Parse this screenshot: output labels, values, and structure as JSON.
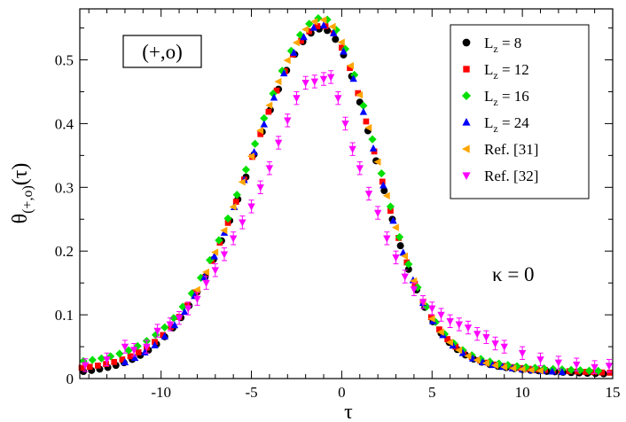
{
  "chart_data": {
    "type": "scatter",
    "title": "",
    "xlabel": "τ",
    "ylabel_main": "θ",
    "ylabel_sub": "(+,o)",
    "ylabel_tail": "(τ)",
    "xlim": [
      -14.5,
      15
    ],
    "ylim": [
      0,
      0.58
    ],
    "xticks": [
      -10,
      -5,
      0,
      5,
      10,
      15
    ],
    "yticks": [
      0,
      0.1,
      0.2,
      0.3,
      0.4,
      0.5
    ],
    "xtick_labels": [
      "-10",
      "-5",
      "0",
      "5",
      "10",
      "15"
    ],
    "ytick_labels": [
      "0",
      "0.1",
      "0.2",
      "0.3",
      "0.4",
      "0.5"
    ],
    "minor_xtick_step": 1,
    "minor_ytick_step": 0.05,
    "annotations": {
      "box_label": "(+,o)",
      "kappa_label": "κ = 0"
    },
    "legend_position": "top-right",
    "curve": {
      "peak_x": -1.1,
      "peak_y": 0.552,
      "width_left": 4.1,
      "width_right": 3.0,
      "tail_left": 4.2,
      "tail_right": 4.6
    },
    "series": [
      {
        "name": "Lz8",
        "label_main": "L",
        "label_sub": "z",
        "label_tail": " = 8",
        "marker": "circle",
        "color": "#000000",
        "x_start": -14.3,
        "x_end": 14.5,
        "step": 0.45,
        "y_scale": 0.994,
        "y_offset": 0.0,
        "left_boost": 0.0
      },
      {
        "name": "Lz12",
        "label_main": "L",
        "label_sub": "z",
        "label_tail": " = 12",
        "marker": "square",
        "color": "#ff0000",
        "x_start": -14.4,
        "x_end": 14.9,
        "step": 0.45,
        "y_scale": 1.0,
        "y_offset": 0.002,
        "left_boost": 0.004
      },
      {
        "name": "Lz16",
        "label_main": "L",
        "label_sub": "z",
        "label_tail": " = 16",
        "marker": "diamond",
        "color": "#00e000",
        "x_start": -14.3,
        "x_end": 14.6,
        "step": 0.5,
        "y_scale": 1.018,
        "y_offset": 0.004,
        "left_boost": 0.012
      },
      {
        "name": "Lz24",
        "label_main": "L",
        "label_sub": "z",
        "label_tail": " = 24",
        "marker": "triangle-up",
        "color": "#0000ff",
        "x_start": -12.0,
        "x_end": 12.5,
        "step": 0.55,
        "y_scale": 1.004,
        "y_offset": 0.0,
        "left_boost": 0.0
      },
      {
        "name": "Ref31",
        "label_main": "Ref. [31]",
        "label_sub": "",
        "label_tail": "",
        "marker": "triangle-left",
        "color": "#ffa500",
        "x_start": -8.0,
        "x_end": 11.0,
        "step": 0.5,
        "y_scale": 1.02,
        "y_offset": 0.0,
        "left_boost": 0.0
      },
      {
        "name": "Ref32",
        "label_main": "Ref. [32]",
        "label_sub": "",
        "label_tail": "",
        "marker": "triangle-down",
        "color": "#ff00ff",
        "points": [
          [
            -14.2,
            0.021
          ],
          [
            -13.0,
            0.03
          ],
          [
            -12.0,
            0.05
          ],
          [
            -11.5,
            0.045
          ],
          [
            -10.8,
            0.05
          ],
          [
            -10.2,
            0.075
          ],
          [
            -9.5,
            0.085
          ],
          [
            -9.0,
            0.095
          ],
          [
            -8.5,
            0.11
          ],
          [
            -8.0,
            0.125
          ],
          [
            -7.5,
            0.15
          ],
          [
            -7.0,
            0.17
          ],
          [
            -6.5,
            0.195
          ],
          [
            -6.0,
            0.22
          ],
          [
            -5.5,
            0.245
          ],
          [
            -5.0,
            0.27
          ],
          [
            -4.5,
            0.3
          ],
          [
            -4.0,
            0.33
          ],
          [
            -3.5,
            0.37
          ],
          [
            -3.0,
            0.405
          ],
          [
            -2.5,
            0.44
          ],
          [
            -2.0,
            0.464
          ],
          [
            -1.5,
            0.466
          ],
          [
            -1.0,
            0.47
          ],
          [
            -0.6,
            0.473
          ],
          [
            -0.2,
            0.44
          ],
          [
            0.2,
            0.4
          ],
          [
            0.6,
            0.36
          ],
          [
            1.0,
            0.33
          ],
          [
            1.5,
            0.29
          ],
          [
            2.0,
            0.26
          ],
          [
            2.5,
            0.22
          ],
          [
            3.0,
            0.19
          ],
          [
            3.5,
            0.16
          ],
          [
            4.0,
            0.14
          ],
          [
            4.5,
            0.12
          ],
          [
            5.0,
            0.11
          ],
          [
            5.5,
            0.1
          ],
          [
            6.0,
            0.09
          ],
          [
            6.5,
            0.085
          ],
          [
            7.0,
            0.08
          ],
          [
            7.5,
            0.07
          ],
          [
            8.0,
            0.065
          ],
          [
            8.5,
            0.055
          ],
          [
            9.0,
            0.05
          ],
          [
            10.0,
            0.04
          ],
          [
            11.0,
            0.03
          ],
          [
            12.0,
            0.025
          ],
          [
            13.0,
            0.022
          ],
          [
            14.0,
            0.018
          ],
          [
            14.8,
            0.02
          ]
        ]
      }
    ]
  }
}
